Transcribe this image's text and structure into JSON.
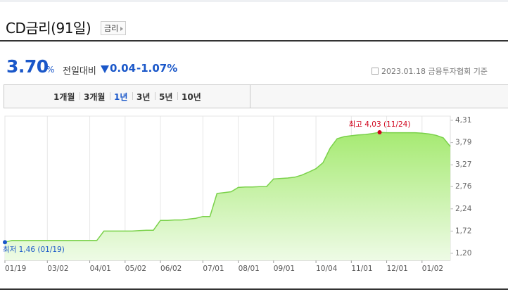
{
  "header": {
    "title": "CD금리(91일)",
    "button": "금리",
    "price": "3.70",
    "price_unit": "%",
    "compare_label": "전일대비",
    "change": "0.04",
    "change_pct": "-1.07%",
    "source": "2023.01.18 금융투자협회 기준",
    "tabs": [
      "1개월",
      "3개월",
      "1년",
      "3년",
      "5년",
      "10년"
    ],
    "active_tab": "1년"
  },
  "chart_data": {
    "type": "area",
    "categories": [
      "01/19",
      null,
      null,
      null,
      null,
      null,
      "03/02",
      null,
      null,
      null,
      null,
      null,
      "04/01",
      null,
      null,
      null,
      null,
      "05/02",
      null,
      null,
      null,
      null,
      "06/02",
      null,
      null,
      null,
      null,
      null,
      "07/01",
      null,
      null,
      null,
      null,
      "08/01",
      null,
      null,
      null,
      null,
      "09/01",
      null,
      null,
      null,
      null,
      null,
      "10/04",
      null,
      null,
      null,
      null,
      "11/01",
      null,
      null,
      null,
      null,
      "12/01",
      null,
      null,
      null,
      null,
      "01/02",
      null,
      null,
      null,
      null
    ],
    "series": [
      {
        "name": "CD금리(91일)",
        "color": "#7ad14a",
        "values": [
          1.46,
          1.5,
          1.5,
          1.5,
          1.5,
          1.5,
          1.5,
          1.5,
          1.5,
          1.5,
          1.5,
          1.5,
          1.5,
          1.5,
          1.72,
          1.72,
          1.72,
          1.72,
          1.72,
          1.73,
          1.74,
          1.74,
          1.97,
          1.97,
          1.98,
          1.98,
          2.0,
          2.02,
          2.06,
          2.06,
          2.6,
          2.62,
          2.64,
          2.74,
          2.75,
          2.75,
          2.76,
          2.76,
          2.94,
          2.95,
          2.96,
          2.98,
          3.03,
          3.1,
          3.18,
          3.32,
          3.66,
          3.88,
          3.93,
          3.95,
          3.97,
          3.98,
          4.0,
          4.03,
          4.02,
          4.02,
          4.02,
          4.02,
          4.02,
          4.01,
          3.99,
          3.96,
          3.9,
          3.7
        ]
      }
    ],
    "ylim": [
      1.2,
      4.31
    ],
    "yticks": [
      {
        "value": 1.2,
        "label": "1,20"
      },
      {
        "value": 1.72,
        "label": "1,72"
      },
      {
        "value": 2.24,
        "label": "2,24"
      },
      {
        "value": 2.76,
        "label": "2,76"
      },
      {
        "value": 3.27,
        "label": "3,27"
      },
      {
        "value": 3.79,
        "label": "3,79"
      },
      {
        "value": 4.31,
        "label": "4,31"
      }
    ],
    "annotations": [
      {
        "text": "최고 4,03 (11/24)",
        "index": 53,
        "color": "#d0021b"
      },
      {
        "text": "최저 1,46 (01/19)",
        "index": 0,
        "color": "#1a57c9"
      }
    ],
    "grid": true
  }
}
